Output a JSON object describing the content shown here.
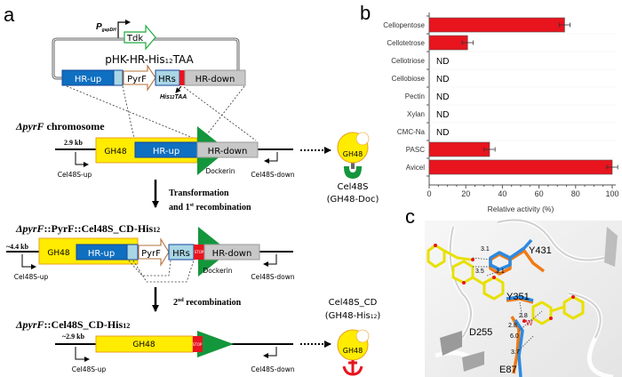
{
  "panel_labels": {
    "a": "a",
    "b": "b",
    "c": "c"
  },
  "panel_a": {
    "promoter": {
      "main": "P",
      "sub": "gapDH"
    },
    "tdk": "Tdk",
    "plasmid": {
      "pre": "pHK-HR-His",
      "sub": "12",
      "post": "TAA"
    },
    "plasmid_boxes": {
      "hr_up": "HR-up",
      "pyrf": "PyrF",
      "hrs": "HRs",
      "hr_down": "HR-down"
    },
    "his_tag": {
      "pre": "His",
      "sub": "12",
      "post": "TAA"
    },
    "row1": {
      "title_italic": "ΔpyrF",
      "title_rest": " chromosome",
      "size": "2.9 kb",
      "gh48": "GH48",
      "hr_up": "HR-up",
      "hr_down": "HR-down",
      "dockerin": "Dockerin",
      "primer_up": "Cel48S-up",
      "primer_down": "Cel48S-down"
    },
    "protein1": {
      "domain": "GH48",
      "name": "Cel48S",
      "desc": "(GH48-Doc)"
    },
    "step1": {
      "line1": "Transformation",
      "line2_pre": "and 1",
      "line2_sup": "st",
      "line2_post": " recombination"
    },
    "row2": {
      "title_italic": "ΔpyrF",
      "title_rest": "::PyrF::Cel48S_CD-His",
      "title_sub": "12",
      "size": "~4.4 kb",
      "gh48": "GH48",
      "hr_up": "HR-up",
      "pyrf": "PyrF",
      "hrs": "HRs",
      "stop": "STOP",
      "hr_down": "HR-down",
      "dockerin": "Dockerin",
      "primer_up": "Cel48S-up",
      "primer_down": "Cel48S-down"
    },
    "step2": {
      "pre": "2",
      "sup": "nd",
      "post": " recombination"
    },
    "row3": {
      "title_italic": "ΔpyrF",
      "title_rest": "::Cel48S_CD-His",
      "title_sub": "12",
      "size": "~2.9 kb",
      "gh48": "GH48",
      "stop": "STOP",
      "primer_up": "Cel48S-up",
      "primer_down": "Cel48S-down"
    },
    "protein2": {
      "domain": "GH48",
      "name": "Cel48S_CD",
      "desc_pre": "(GH48-His",
      "desc_sub": "12",
      "desc_post": ")"
    },
    "colors": {
      "gh48": "#ffec00",
      "hr_up": "#0f6fc0",
      "hrs": "#a9d6e5",
      "hr_down": "#c8c8c8",
      "dockerin": "#14963c",
      "stop": "#e8141e",
      "tdk": "#1faa3c",
      "pyrf": "#b5703a"
    }
  },
  "chart_data": {
    "type": "bar",
    "orientation": "horizontal",
    "categories": [
      "Cellopentose",
      "Cellotetrose",
      "Cellotriose",
      "Cellobiose",
      "Pectin",
      "Xylan",
      "CMC-Na",
      "PASC",
      "Avicel"
    ],
    "values": [
      74,
      21,
      null,
      null,
      null,
      null,
      null,
      33,
      100
    ],
    "errors": [
      3,
      3,
      null,
      null,
      null,
      null,
      null,
      3,
      3
    ],
    "annotations": [
      "",
      "",
      "ND",
      "ND",
      "ND",
      "ND",
      "ND",
      "",
      ""
    ],
    "xlabel": "Relative activity (%)",
    "ylabel": "",
    "xlim": [
      0,
      102
    ],
    "xticks": [
      0,
      20,
      40,
      60,
      80,
      100
    ],
    "grid": false,
    "bar_color": "#e8141e"
  },
  "panel_c": {
    "residues": [
      "Y431",
      "Y351",
      "D255",
      "E87"
    ],
    "distances": [
      "3.1",
      "3.5",
      "3.1",
      "2.8",
      "2.8",
      "6.0",
      "3.7"
    ],
    "water": "W"
  }
}
